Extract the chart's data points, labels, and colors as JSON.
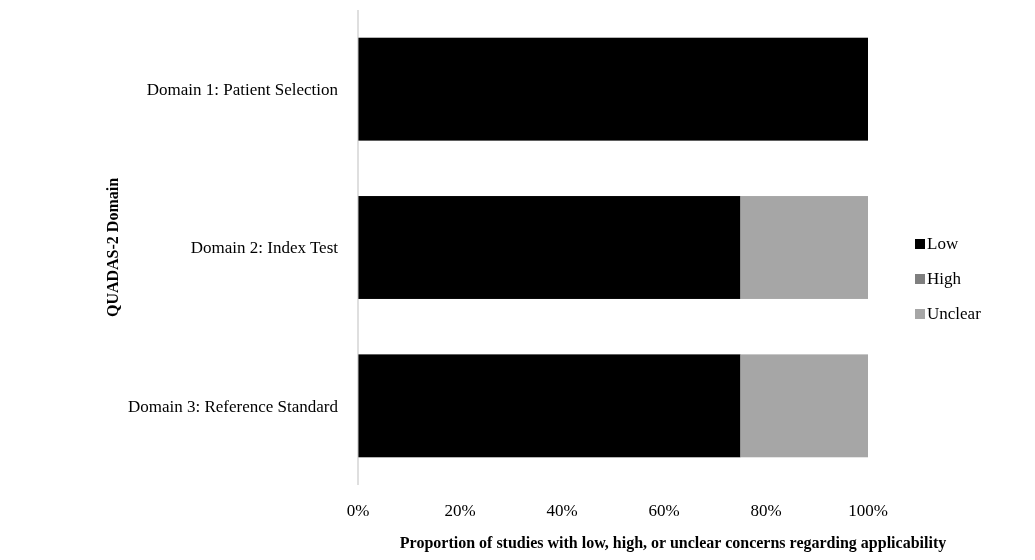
{
  "chart_data": {
    "type": "bar",
    "orientation": "horizontal",
    "stacked": true,
    "categories": [
      "Domain 1: Patient Selection",
      "Domain 2: Index Test",
      "Domain 3: Reference Standard"
    ],
    "series": [
      {
        "name": "Low",
        "color": "#000000",
        "values": [
          100,
          75,
          75
        ]
      },
      {
        "name": "High",
        "color": "#7f7f7f",
        "values": [
          0,
          0,
          0
        ]
      },
      {
        "name": "Unclear",
        "color": "#a6a6a6",
        "values": [
          0,
          25,
          25
        ]
      }
    ],
    "xlim": [
      0,
      100
    ],
    "xticks": [
      {
        "value": 0,
        "label": "0%"
      },
      {
        "value": 20,
        "label": "20%"
      },
      {
        "value": 40,
        "label": "40%"
      },
      {
        "value": 60,
        "label": "60%"
      },
      {
        "value": 80,
        "label": "80%"
      },
      {
        "value": 100,
        "label": "100%"
      }
    ],
    "xlabel": "Proportion of studies with low, high, or unclear concerns regarding applicability",
    "ylabel": "QUADAS-2 Domain",
    "grid": false,
    "legend": "right"
  }
}
